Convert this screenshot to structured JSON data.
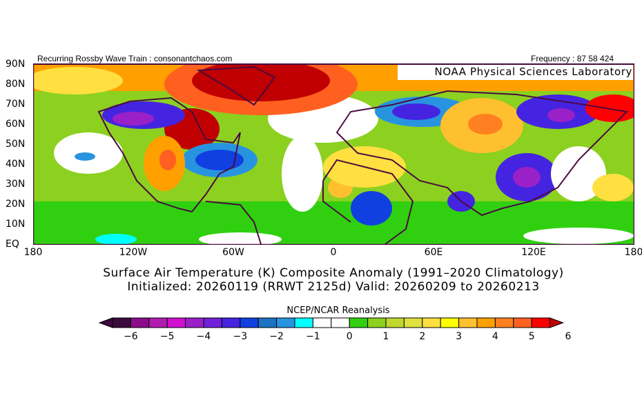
{
  "header": {
    "left": "Recurring Rossby Wave Train : consonantchaos.com",
    "right": "Frequency : 87 58 424",
    "lab": "NOAA Physical Sciences Laboratory"
  },
  "lat_labels": [
    "90N",
    "80N",
    "70N",
    "60N",
    "50N",
    "40N",
    "30N",
    "20N",
    "10N",
    "EQ"
  ],
  "lon_labels": [
    "180",
    "120W",
    "60W",
    "0",
    "60E",
    "120E",
    "180"
  ],
  "title": {
    "line1": "Surface Air Temperature (K) Composite Anomaly (1991–2020 Climatology)",
    "line2": "Initialized: 20260119 (RRWT 2125d) Valid: 20260209 to 20260213"
  },
  "colorbar": {
    "label": "NCEP/NCAR Reanalysis",
    "ticks": [
      "−6",
      "−5",
      "−4",
      "−3",
      "−2",
      "−1",
      "0",
      "1",
      "2",
      "3",
      "4",
      "5",
      "6"
    ],
    "colors": [
      "#3c0a3c",
      "#8c0c8c",
      "#b01cb0",
      "#d010d0",
      "#9a20c8",
      "#7020d8",
      "#4424e0",
      "#1040e0",
      "#1a72c0",
      "#2894e0",
      "#00ffff",
      "#ffffff",
      "#ffffff",
      "#30d010",
      "#8cd020",
      "#c0d830",
      "#e0e040",
      "#ffe040",
      "#ffff00",
      "#ffc030",
      "#ffa000",
      "#ff8020",
      "#ff6020",
      "#ff0000"
    ],
    "under_color": "#3c0a3c",
    "over_color": "#c00000"
  }
}
